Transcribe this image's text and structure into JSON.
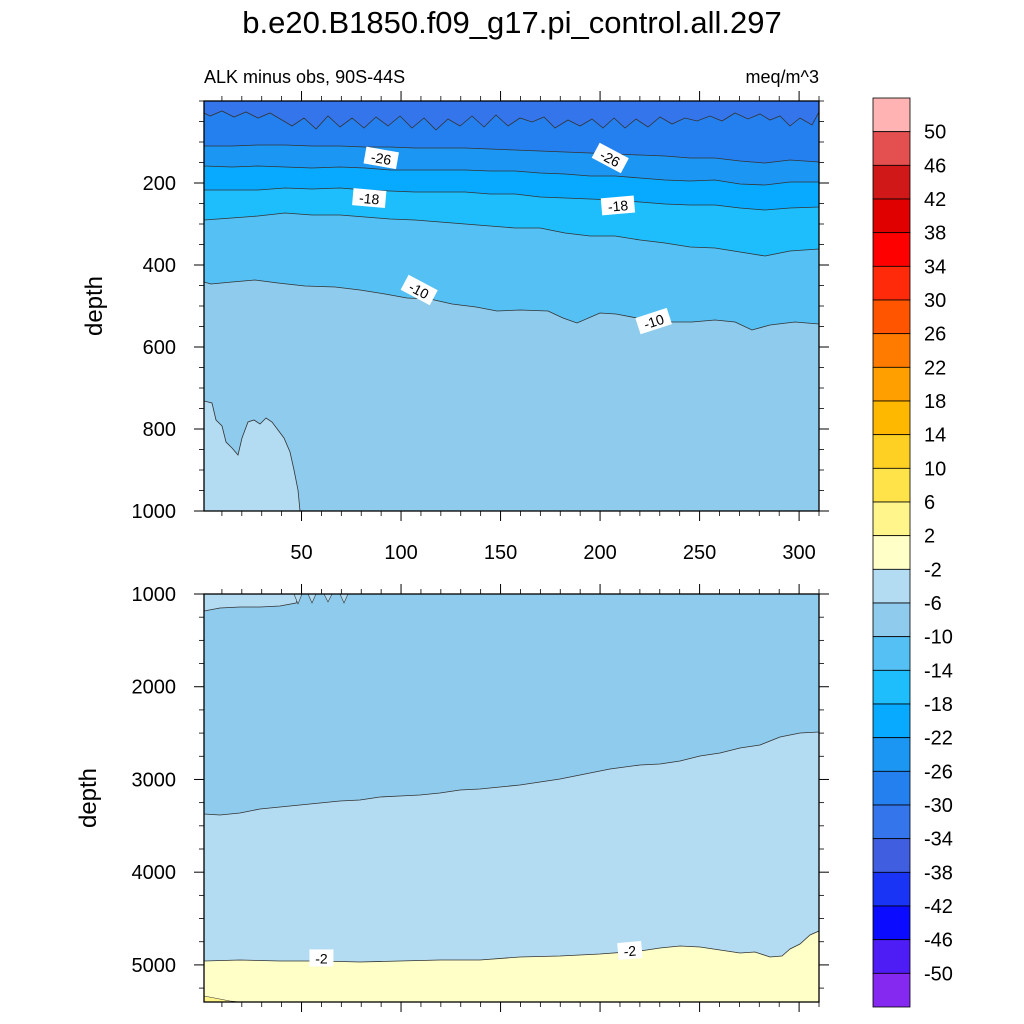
{
  "figure": {
    "title": "b.e20.B1850.f09_g17.pi_control.all.297",
    "subtitle_left": "ALK minus obs, 90S-44S",
    "subtitle_right": "meq/m^3"
  },
  "chart_data": [
    {
      "type": "heatmap",
      "panel": "upper",
      "ylabel": "depth",
      "xlabel": "",
      "xlim": [
        1,
        310
      ],
      "ylim": [
        1000,
        0
      ],
      "x_ticks": [
        50,
        100,
        150,
        200,
        250,
        300
      ],
      "y_ticks": [
        200,
        400,
        600,
        800,
        1000
      ],
      "grid": false,
      "fill_levels": [
        {
          "depth_top": 0,
          "level": -34
        },
        {
          "depth_top": 110,
          "level": -30
        },
        {
          "depth_top": 140,
          "level": -26
        },
        {
          "depth_top": 200,
          "level": -22
        },
        {
          "depth_top": 260,
          "level": -18
        },
        {
          "depth_top": 300,
          "level": -14
        },
        {
          "depth_top": 460,
          "level": -10
        }
      ],
      "contour_labels": [
        {
          "text": "-26",
          "x": 90,
          "depth": 140
        },
        {
          "text": "-26",
          "x": 205,
          "depth": 140
        },
        {
          "text": "-18",
          "x": 84,
          "depth": 238
        },
        {
          "text": "-18",
          "x": 209,
          "depth": 256
        },
        {
          "text": "-10",
          "x": 109,
          "depth": 462
        },
        {
          "text": "-10",
          "x": 227,
          "depth": 538
        }
      ]
    },
    {
      "type": "heatmap",
      "panel": "lower",
      "ylabel": "depth",
      "xlabel": "",
      "xlim": [
        1,
        310
      ],
      "ylim": [
        5400,
        1000
      ],
      "y_ticks": [
        1000,
        2000,
        3000,
        4000,
        5000
      ],
      "grid": false,
      "fill_levels": [
        {
          "depth_top": 1000,
          "level": -10
        },
        {
          "depth_top": 3000,
          "level": -6
        },
        {
          "depth_top": 4900,
          "level": -2
        }
      ],
      "contour_labels": [
        {
          "text": "-2",
          "x": 60,
          "depth": 4930
        },
        {
          "text": "-2",
          "x": 215,
          "depth": 4850
        }
      ]
    }
  ],
  "colorbar": {
    "labels": [
      "50",
      "46",
      "42",
      "38",
      "34",
      "30",
      "26",
      "22",
      "18",
      "14",
      "10",
      "6",
      "2",
      "-2",
      "-6",
      "-10",
      "-14",
      "-18",
      "-22",
      "-26",
      "-30",
      "-34",
      "-38",
      "-42",
      "-46",
      "-50"
    ],
    "colors": [
      "#ffb3b3",
      "#e45050",
      "#d01818",
      "#e00000",
      "#ff0000",
      "#ff2a0a",
      "#ff5500",
      "#ff7b00",
      "#ff9f00",
      "#ffb800",
      "#ffd024",
      "#ffe348",
      "#fff58a",
      "#ffffc8",
      "#b3dcf3",
      "#8ecbec",
      "#55c0f3",
      "#1ebdfb",
      "#08aaff",
      "#1b96f3",
      "#2580ef",
      "#3575ec",
      "#3f5ee0",
      "#1a34f5",
      "#0b0bff",
      "#4e1cf5",
      "#8529f0"
    ]
  }
}
